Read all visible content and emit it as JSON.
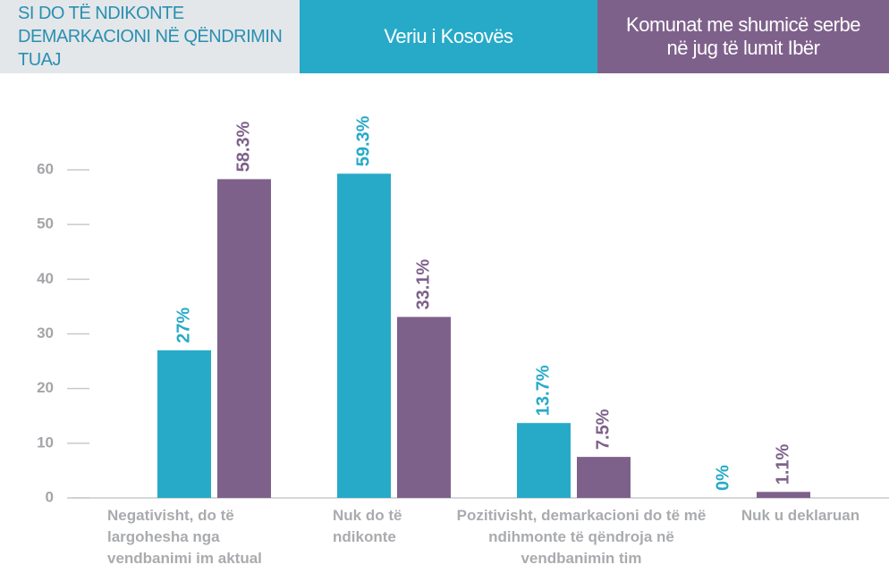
{
  "chart_data": {
    "type": "bar",
    "title": "SI DO TË NDIKONTE DEMARKACIONI NË QËNDRIMIN TUAJ",
    "categories": [
      "Negativisht, do të largohesha nga vendbanimi im aktual",
      "Nuk do të ndikonte",
      "Pozitivisht, demarkacioni do të më ndihmonte të qëndroja në vendbanimin tim",
      "Nuk u deklaruan"
    ],
    "series": [
      {
        "name": "Veriu i Kosovës",
        "color": "#27aac8",
        "values": [
          27,
          59.3,
          13.7,
          0
        ],
        "value_labels": [
          "27%",
          "59.3%",
          "13.7%",
          "0%"
        ]
      },
      {
        "name": "Komunat me shumicë serbe në jug të lumit Ibër",
        "color": "#7e618b",
        "values": [
          58.3,
          33.1,
          7.5,
          1.1
        ],
        "value_labels": [
          "58.3%",
          "33.1%",
          "7.5%",
          "1.1%"
        ]
      }
    ],
    "ylim": [
      0,
      60
    ],
    "yticks": [
      0,
      10,
      20,
      30,
      40,
      50,
      60
    ],
    "grid": false
  }
}
